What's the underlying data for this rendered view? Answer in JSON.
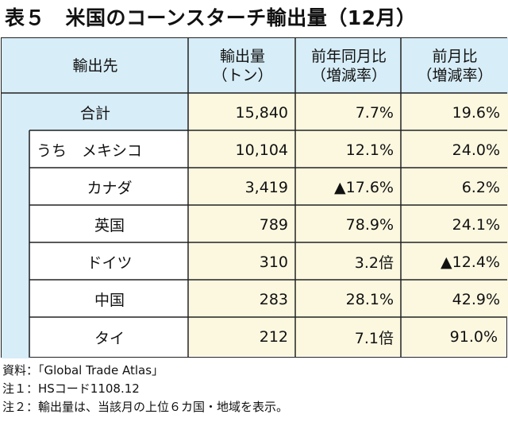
{
  "title": "表５　米国のコーンスターチ輸出量（12月）",
  "table": {
    "headers": {
      "dest": "輸出先",
      "qty_line1": "輸出量",
      "qty_line2": "（トン）",
      "yoy_line1": "前年同月比",
      "yoy_line2": "（増減率）",
      "mom_line1": "前月比",
      "mom_line2": "（増減率）"
    },
    "rows": [
      {
        "name": "合計",
        "qty": "15,840",
        "yoy": "7.7%",
        "mom": "19.6%"
      },
      {
        "name": "うち　メキシコ",
        "qty": "10,104",
        "yoy": "12.1%",
        "mom": "24.0%"
      },
      {
        "name": "カナダ",
        "qty": "3,419",
        "yoy": "▲17.6%",
        "mom": "6.2%"
      },
      {
        "name": "英国",
        "qty": "789",
        "yoy": "78.9%",
        "mom": "24.1%"
      },
      {
        "name": "ドイツ",
        "qty": "310",
        "yoy": "3.2倍",
        "mom": "▲12.4%"
      },
      {
        "name": "中国",
        "qty": "283",
        "yoy": "28.1%",
        "mom": "42.9%"
      },
      {
        "name": "タイ",
        "qty": "212",
        "yoy": "7.1倍",
        "mom": "91.0%"
      }
    ]
  },
  "notes": [
    "資料：「Global Trade Atlas」",
    "注１：HSコード1108.12",
    "注２：輸出量は、当該月の上位６カ国・地域を表示。"
  ],
  "colors": {
    "header_bg": "#d7edf7",
    "value_bg": "#fcf8e0",
    "border": "#222222"
  }
}
